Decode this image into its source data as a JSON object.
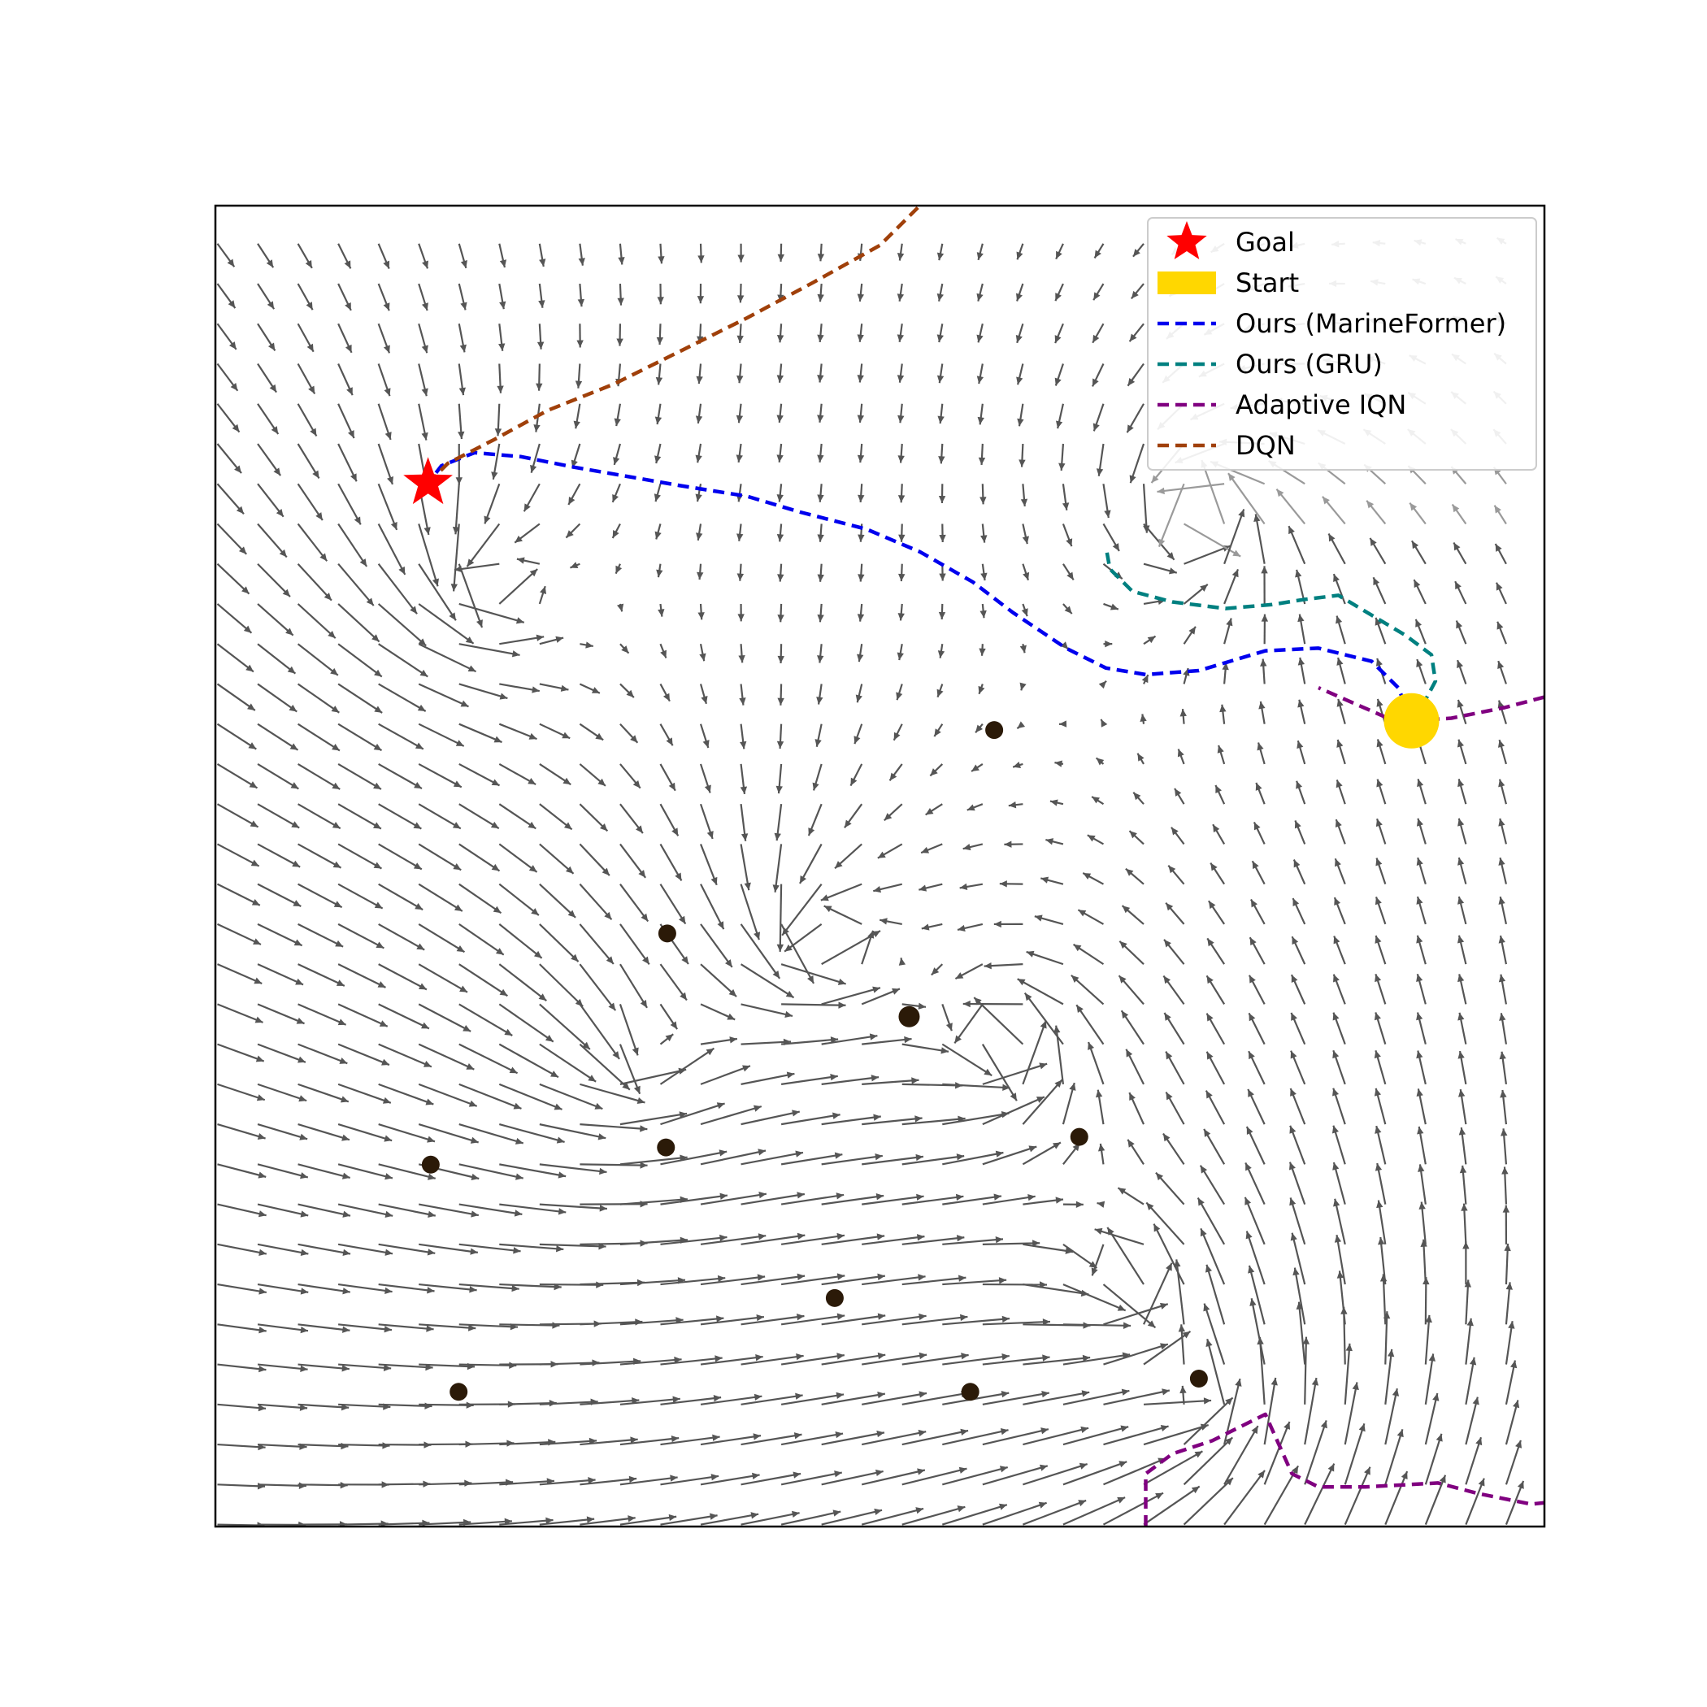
{
  "chart_data": {
    "type": "scatter",
    "title": "",
    "xlabel": "",
    "ylabel": "",
    "xlim": [
      0,
      100
    ],
    "ylim": [
      0,
      100
    ],
    "grid": false,
    "legend_position": "top-right",
    "background_field": "vector field (quiver) of currents, flowing mostly to the right and slightly upward",
    "colors": {
      "goal": "#ff0000",
      "start": "#ffd700",
      "marineformer": "#0000ee",
      "gru": "#008080",
      "adaptive_iqn": "#800080",
      "dqn": "#a0400a",
      "arrows": "#555555",
      "obstacles": "#2b1a08"
    },
    "legend": [
      {
        "key": "goal",
        "label": "Goal",
        "marker": "star"
      },
      {
        "key": "start",
        "label": "Start",
        "marker": "rect"
      },
      {
        "key": "marineformer",
        "label": "Ours (MarineFormer)",
        "marker": "dashed-line"
      },
      {
        "key": "gru",
        "label": "Ours (GRU)",
        "marker": "dashed-line"
      },
      {
        "key": "adaptive_iqn",
        "label": "Adaptive IQN",
        "marker": "dashed-line"
      },
      {
        "key": "dqn",
        "label": "DQN",
        "marker": "dashed-line"
      }
    ],
    "goal": {
      "x": 16,
      "y": 79
    },
    "start": {
      "x": 90,
      "y": 61
    },
    "obstacles": [
      {
        "x": 58.6,
        "y": 60.3
      },
      {
        "x": 34,
        "y": 44.9
      },
      {
        "x": 52.2,
        "y": 38.6
      },
      {
        "x": 65,
        "y": 29.5
      },
      {
        "x": 16.2,
        "y": 27.4
      },
      {
        "x": 33.9,
        "y": 28.7
      },
      {
        "x": 46.6,
        "y": 17.3
      },
      {
        "x": 18.3,
        "y": 10.2
      },
      {
        "x": 56.8,
        "y": 10.2
      },
      {
        "x": 74,
        "y": 11.2
      }
    ],
    "vortices": [
      {
        "x": 74.5,
        "y": 76.6,
        "strength": 1.0
      },
      {
        "x": 45.2,
        "y": 44.9,
        "strength": 1.0
      },
      {
        "x": 30.5,
        "y": 35.5,
        "strength": 0.8
      },
      {
        "x": 20,
        "y": 72,
        "strength": 0.9
      },
      {
        "x": 59,
        "y": 36,
        "strength": 1.1
      },
      {
        "x": 68,
        "y": 18,
        "strength": 1.1
      },
      {
        "x": 73,
        "y": 8,
        "strength": 0.9
      }
    ],
    "series": [
      {
        "key": "marineformer",
        "name": "Ours (MarineFormer)",
        "points": [
          [
            90,
            61
          ],
          [
            89,
            63.5
          ],
          [
            87,
            65.5
          ],
          [
            83,
            66.5
          ],
          [
            79,
            66.3
          ],
          [
            74,
            64.8
          ],
          [
            70,
            64.5
          ],
          [
            67,
            65
          ],
          [
            64,
            66.5
          ],
          [
            60,
            69.2
          ],
          [
            57,
            71.5
          ],
          [
            53,
            73.8
          ],
          [
            49,
            75.5
          ],
          [
            44,
            76.8
          ],
          [
            40,
            78
          ],
          [
            35,
            78.8
          ],
          [
            31,
            79.5
          ],
          [
            27,
            80.2
          ],
          [
            23,
            81
          ],
          [
            19.5,
            81.3
          ],
          [
            17,
            80.3
          ],
          [
            16,
            79
          ]
        ]
      },
      {
        "key": "gru",
        "name": "Ours (GRU)",
        "points": [
          [
            90,
            61
          ],
          [
            91,
            62.5
          ],
          [
            91.8,
            64
          ],
          [
            91.5,
            66
          ],
          [
            89.5,
            67.5
          ],
          [
            87,
            69
          ],
          [
            84.5,
            70.5
          ],
          [
            82,
            70.2
          ],
          [
            79.5,
            69.8
          ],
          [
            76,
            69.5
          ],
          [
            72,
            70
          ],
          [
            69,
            70.8
          ],
          [
            67.3,
            72.5
          ],
          [
            67,
            74.2
          ]
        ]
      },
      {
        "key": "adaptive_iqn",
        "name": "Adaptive IQN",
        "points": [
          [
            100,
            62.8
          ],
          [
            97,
            62
          ],
          [
            93,
            61.2
          ],
          [
            90,
            61
          ],
          [
            88,
            61.3
          ],
          [
            83,
            63.5
          ],
          [
            70,
            0
          ],
          [
            70,
            4
          ],
          [
            72,
            5.5
          ],
          [
            75,
            6.5
          ],
          [
            79,
            8.5
          ],
          [
            81,
            4
          ],
          [
            83,
            3
          ],
          [
            86.5,
            3
          ],
          [
            92,
            3.3
          ],
          [
            95,
            2.5
          ],
          [
            99,
            1.7
          ],
          [
            100,
            1.8
          ]
        ]
      },
      {
        "key": "dqn",
        "name": "DQN",
        "points": [
          [
            16,
            79
          ],
          [
            17.5,
            80.5
          ],
          [
            21,
            82.3
          ],
          [
            25,
            84.5
          ],
          [
            30,
            86.5
          ],
          [
            35,
            89
          ],
          [
            40,
            91.5
          ],
          [
            45,
            94.2
          ],
          [
            50,
            97
          ],
          [
            53,
            100
          ]
        ]
      }
    ]
  }
}
